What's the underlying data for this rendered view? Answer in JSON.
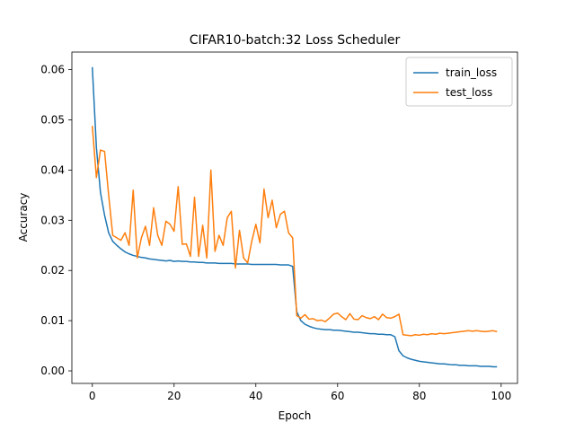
{
  "chart_data": {
    "type": "line",
    "title": "CIFAR10-batch:32 Loss Scheduler",
    "xlabel": "Epoch",
    "ylabel": "Accuracy",
    "xlim": [
      -5,
      104
    ],
    "ylim": [
      -0.0025,
      0.0635
    ],
    "xticks": [
      0,
      20,
      40,
      60,
      80,
      100
    ],
    "yticks": [
      0.0,
      0.01,
      0.02,
      0.03,
      0.04,
      0.05,
      0.06
    ],
    "ytick_labels": [
      "0.00",
      "0.01",
      "0.02",
      "0.03",
      "0.04",
      "0.05",
      "0.06"
    ],
    "grid": false,
    "legend_position": "top-right",
    "series": [
      {
        "name": "train_loss",
        "color": "#1f77b4",
        "values": [
          0.0605,
          0.0445,
          0.0355,
          0.031,
          0.0275,
          0.0258,
          0.025,
          0.0243,
          0.0237,
          0.0233,
          0.023,
          0.0228,
          0.0226,
          0.0225,
          0.0223,
          0.0222,
          0.0221,
          0.022,
          0.0219,
          0.022,
          0.0218,
          0.0219,
          0.0218,
          0.0218,
          0.0217,
          0.0217,
          0.0216,
          0.0216,
          0.0215,
          0.0215,
          0.0215,
          0.0214,
          0.0214,
          0.0214,
          0.0214,
          0.0213,
          0.0213,
          0.0213,
          0.0213,
          0.0212,
          0.0212,
          0.0212,
          0.0212,
          0.0212,
          0.0212,
          0.0212,
          0.0211,
          0.0211,
          0.0211,
          0.0208,
          0.0118,
          0.01,
          0.0093,
          0.0089,
          0.0086,
          0.0084,
          0.0083,
          0.0082,
          0.0082,
          0.0081,
          0.0081,
          0.008,
          0.0079,
          0.0078,
          0.0077,
          0.0077,
          0.0076,
          0.0075,
          0.0074,
          0.0074,
          0.0073,
          0.0073,
          0.0072,
          0.0072,
          0.0068,
          0.004,
          0.003,
          0.0026,
          0.0023,
          0.0021,
          0.0019,
          0.0018,
          0.0017,
          0.0016,
          0.0015,
          0.0014,
          0.0014,
          0.0013,
          0.0012,
          0.0012,
          0.0011,
          0.0011,
          0.001,
          0.001,
          0.001,
          0.0009,
          0.0009,
          0.0009,
          0.0008,
          0.0008
        ]
      },
      {
        "name": "test_loss",
        "color": "#ff7f0e",
        "values": [
          0.0488,
          0.0385,
          0.044,
          0.0437,
          0.035,
          0.027,
          0.0265,
          0.026,
          0.0275,
          0.025,
          0.036,
          0.0225,
          0.0265,
          0.0288,
          0.025,
          0.0325,
          0.027,
          0.025,
          0.0298,
          0.0292,
          0.0278,
          0.0367,
          0.0252,
          0.0253,
          0.0228,
          0.0346,
          0.0228,
          0.029,
          0.0225,
          0.04,
          0.0238,
          0.027,
          0.025,
          0.0305,
          0.0318,
          0.0205,
          0.028,
          0.0225,
          0.0215,
          0.0258,
          0.0292,
          0.0255,
          0.0362,
          0.0305,
          0.034,
          0.0285,
          0.0312,
          0.0318,
          0.0275,
          0.0265,
          0.011,
          0.0105,
          0.0112,
          0.0103,
          0.0104,
          0.01,
          0.0101,
          0.0098,
          0.0105,
          0.0113,
          0.0115,
          0.0108,
          0.0102,
          0.0114,
          0.0103,
          0.0102,
          0.011,
          0.0106,
          0.0104,
          0.0108,
          0.0102,
          0.0113,
          0.0106,
          0.0105,
          0.0108,
          0.0113,
          0.0072,
          0.0071,
          0.007,
          0.0072,
          0.0071,
          0.0073,
          0.0072,
          0.0074,
          0.0073,
          0.0075,
          0.0074,
          0.0075,
          0.0076,
          0.0077,
          0.0078,
          0.0079,
          0.008,
          0.0079,
          0.008,
          0.0079,
          0.0078,
          0.0079,
          0.008,
          0.0078
        ]
      }
    ]
  }
}
